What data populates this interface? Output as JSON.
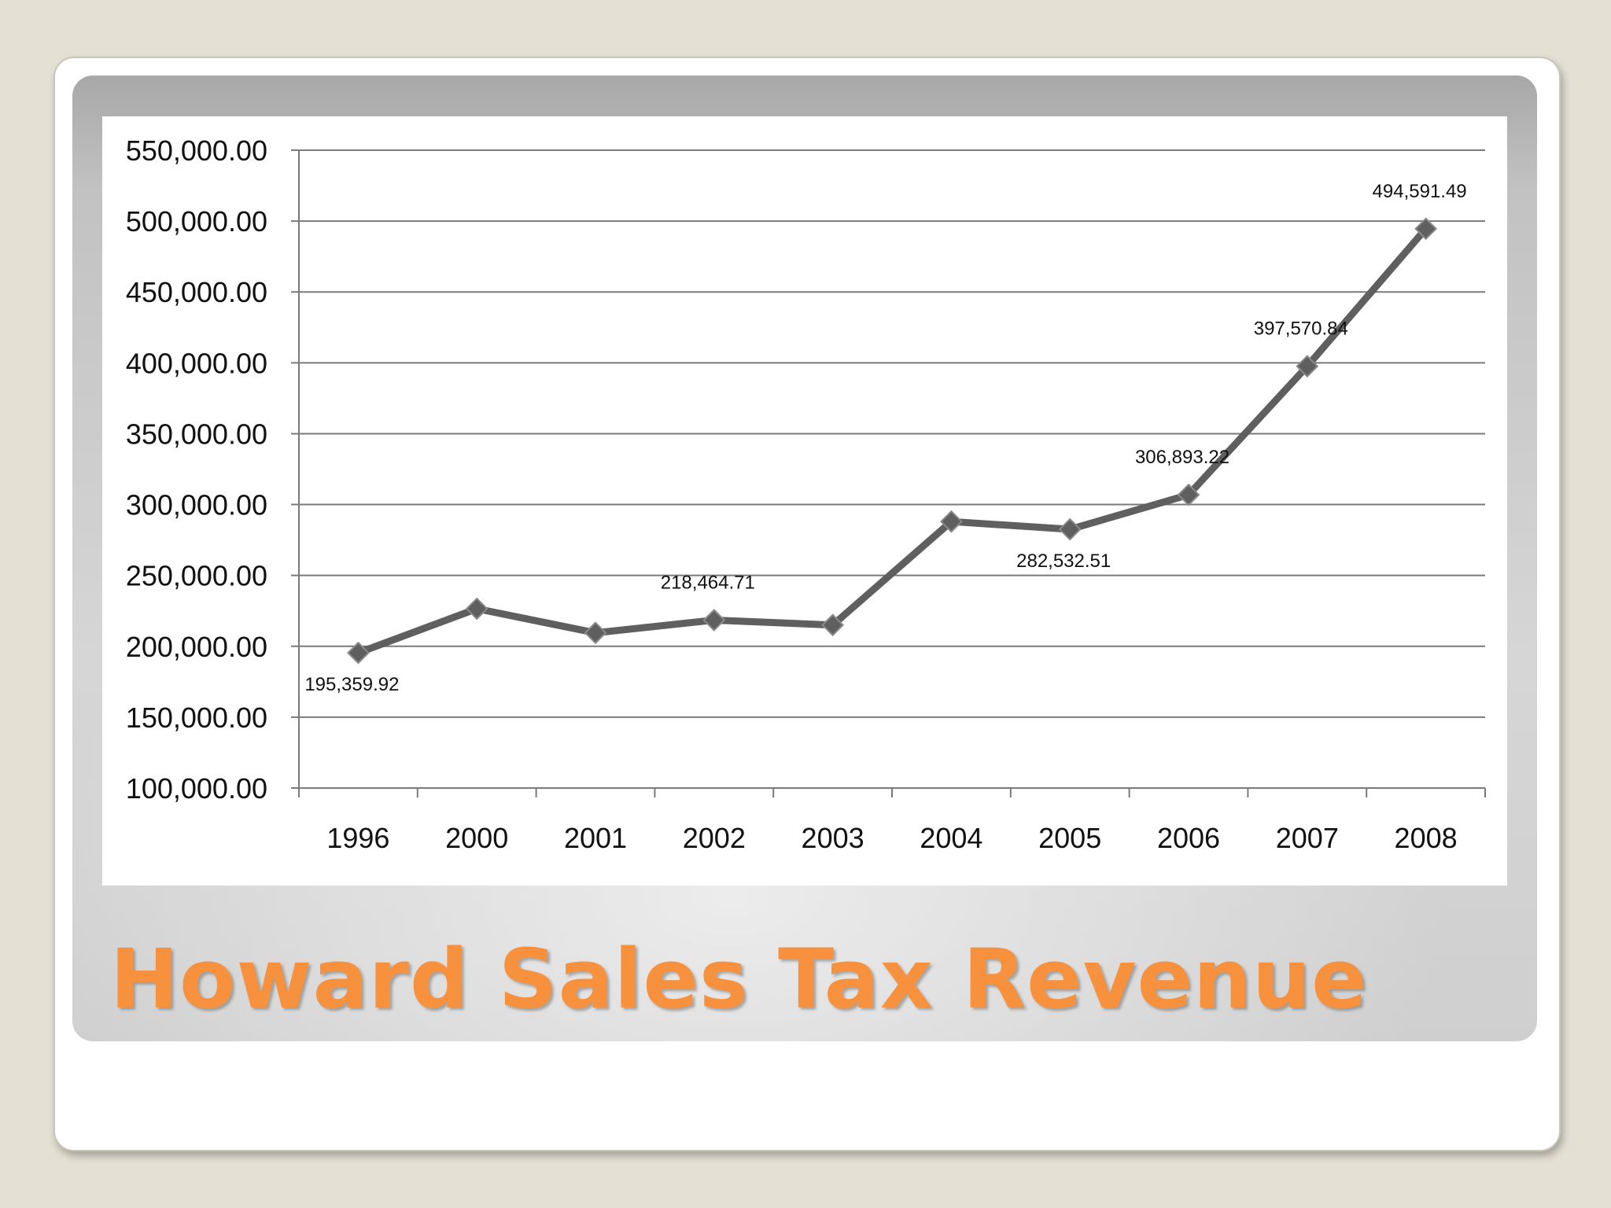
{
  "slide": {
    "title": "Howard Sales Tax Revenue"
  },
  "colors": {
    "title": "#f7913d",
    "line": "#5f5f5f",
    "grid": "#7a7a7a"
  },
  "chart_data": {
    "type": "line",
    "title": "Howard Sales Tax Revenue",
    "xlabel": "",
    "ylabel": "",
    "categories": [
      "1996",
      "2000",
      "2001",
      "2002",
      "2003",
      "2004",
      "2005",
      "2006",
      "2007",
      "2008"
    ],
    "series": [
      {
        "name": "Sales Tax Revenue",
        "values": [
          195359.92,
          226500,
          209500,
          218464.71,
          215000,
          288000,
          282532.51,
          306893.22,
          397570.84,
          494591.49
        ]
      }
    ],
    "ylim": [
      100000,
      550000
    ],
    "ytick_step": 50000,
    "ytick_labels": [
      "100,000.00",
      "150,000.00",
      "200,000.00",
      "250,000.00",
      "300,000.00",
      "350,000.00",
      "400,000.00",
      "450,000.00",
      "500,000.00",
      "550,000.00"
    ],
    "data_labels": [
      {
        "category": "1996",
        "text": "195,359.92",
        "placement": "below"
      },
      {
        "category": "2002",
        "text": "218,464.71",
        "placement": "above"
      },
      {
        "category": "2005",
        "text": "282,532.51",
        "placement": "below"
      },
      {
        "category": "2006",
        "text": "306,893.22",
        "placement": "above"
      },
      {
        "category": "2007",
        "text": "397,570.84",
        "placement": "above"
      },
      {
        "category": "2008",
        "text": "494,591.49",
        "placement": "above"
      }
    ],
    "grid": true,
    "legend": "none"
  }
}
